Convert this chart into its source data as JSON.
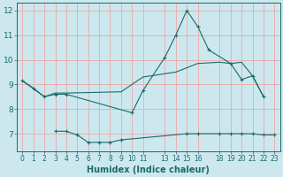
{
  "xlabel": "Humidex (Indice chaleur)",
  "bg_color": "#cce8ee",
  "grid_color": "#e8b0b0",
  "line_color": "#1a6b6b",
  "line1_x": [
    0,
    1,
    2,
    3,
    4,
    10,
    11,
    13,
    14,
    15,
    16,
    17,
    19,
    20,
    21,
    22
  ],
  "line1_y": [
    9.15,
    8.85,
    8.5,
    8.6,
    8.6,
    7.85,
    8.75,
    10.1,
    11.0,
    12.0,
    11.35,
    10.4,
    9.85,
    9.2,
    9.35,
    8.5
  ],
  "line2_x": [
    0,
    2,
    3,
    4,
    9,
    11,
    14,
    16,
    18,
    19,
    20,
    21,
    22
  ],
  "line2_y": [
    9.15,
    8.5,
    8.65,
    8.65,
    8.7,
    9.3,
    9.5,
    9.85,
    9.9,
    9.85,
    9.9,
    9.35,
    8.5
  ],
  "line3_x": [
    3,
    4,
    5,
    6,
    7,
    8,
    9,
    15,
    16,
    18,
    19,
    20,
    21,
    22,
    23
  ],
  "line3_y": [
    7.1,
    7.1,
    6.95,
    6.65,
    6.65,
    6.65,
    6.75,
    7.0,
    7.0,
    7.0,
    7.0,
    7.0,
    7.0,
    6.95,
    6.95
  ],
  "xlim": [
    -0.5,
    23.5
  ],
  "ylim": [
    6.3,
    12.3
  ],
  "yticks": [
    7,
    8,
    9,
    10,
    11,
    12
  ],
  "xticks": [
    0,
    1,
    2,
    3,
    4,
    5,
    6,
    7,
    8,
    9,
    10,
    11,
    13,
    14,
    15,
    16,
    18,
    19,
    20,
    21,
    22,
    23
  ]
}
